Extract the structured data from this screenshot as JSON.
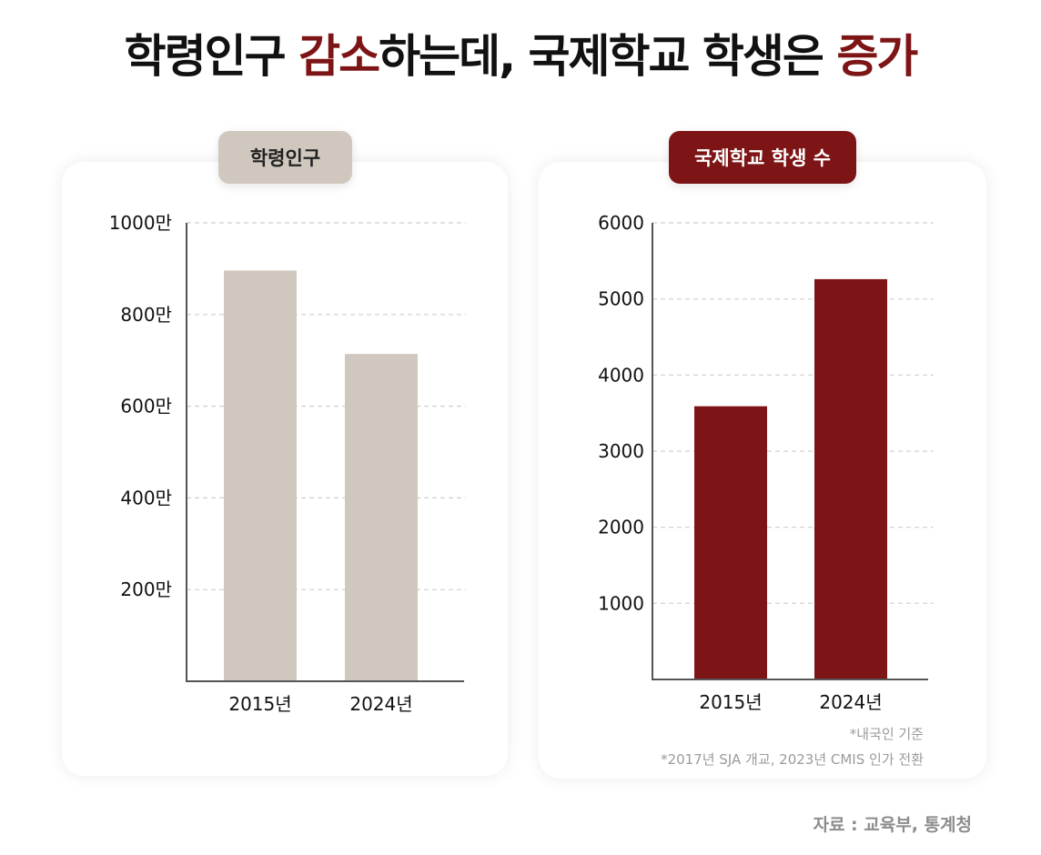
{
  "title": {
    "part1": "학령인구 ",
    "accent1": "감소",
    "part2": "하는데, 국제학교 학생은 ",
    "accent2": "증가"
  },
  "colors": {
    "accent": "#7d1416",
    "left_bar": "#d0c8bf",
    "right_bar": "#7d1416",
    "axis": "#555555",
    "grid": "#cfcfcf"
  },
  "chart_data": [
    {
      "type": "bar",
      "title": "학령인구",
      "categories": [
        "2015년",
        "2024년"
      ],
      "values": [
        8960000,
        7140000
      ],
      "ylim": [
        0,
        10000000
      ],
      "yticks": [
        2000000,
        4000000,
        6000000,
        8000000,
        10000000
      ],
      "ytick_labels": [
        "200만",
        "400만",
        "600만",
        "800만",
        "1000만"
      ],
      "grid": true
    },
    {
      "type": "bar",
      "title": "국제학교 학생 수",
      "categories": [
        "2015년",
        "2024년"
      ],
      "values": [
        3590,
        5260
      ],
      "ylim": [
        0,
        6000
      ],
      "yticks": [
        1000,
        2000,
        3000,
        4000,
        5000,
        6000
      ],
      "ytick_labels": [
        "1000",
        "2000",
        "3000",
        "4000",
        "5000",
        "6000"
      ],
      "grid": true
    }
  ],
  "notes": [
    "*내국인 기준",
    "*2017년 SJA 개교, 2023년 CMIS 인가 전환"
  ],
  "source": "자료 : 교육부, 통계청"
}
